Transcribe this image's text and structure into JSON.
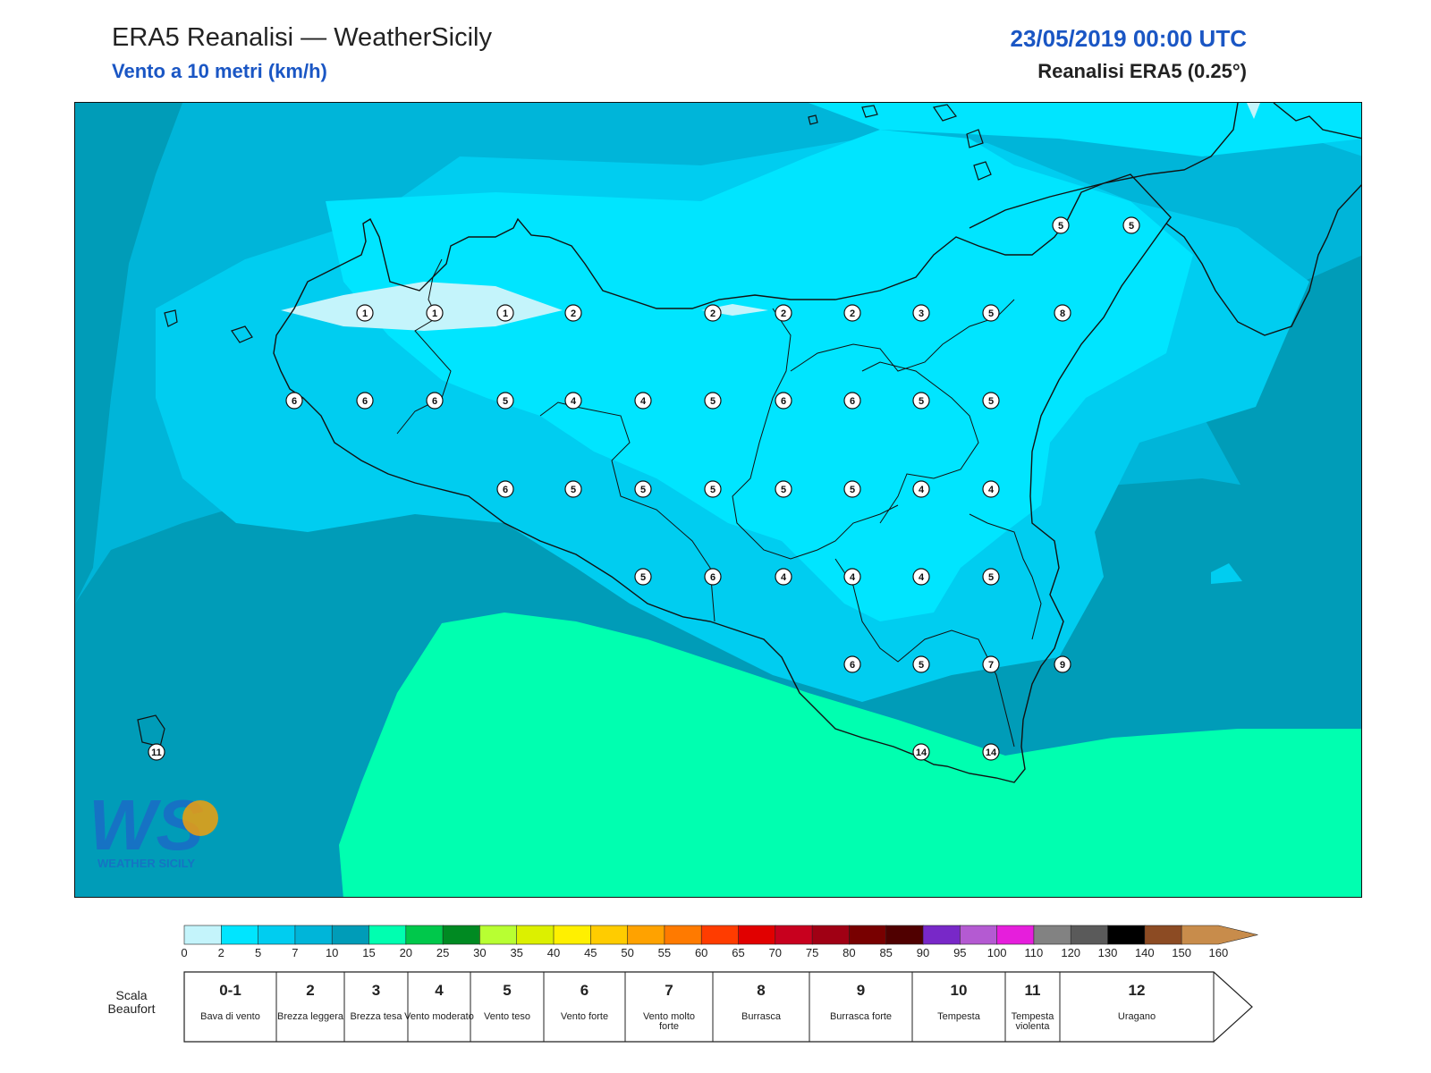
{
  "header": {
    "title": "ERA5 Reanalisi — WeatherSicily",
    "subtitle": "Vento a 10 metri (km/h)",
    "datetime": "23/05/2019 00:00 UTC",
    "model": "Reanalisi ERA5 (0.25°)"
  },
  "logo": {
    "text": "WEATHER SICILY",
    "initials": "WS"
  },
  "map": {
    "wind_labels": [
      {
        "value": "1"
      },
      {
        "value": "1"
      },
      {
        "value": "1"
      },
      {
        "value": "2"
      },
      {
        "value": "2"
      },
      {
        "value": "2"
      },
      {
        "value": "2"
      },
      {
        "value": "3"
      },
      {
        "value": "5"
      },
      {
        "value": "8"
      },
      {
        "value": "6"
      },
      {
        "value": "6"
      },
      {
        "value": "6"
      },
      {
        "value": "5"
      },
      {
        "value": "4"
      },
      {
        "value": "4"
      },
      {
        "value": "5"
      },
      {
        "value": "6"
      },
      {
        "value": "6"
      },
      {
        "value": "5"
      },
      {
        "value": "5"
      },
      {
        "value": "6"
      },
      {
        "value": "5"
      },
      {
        "value": "5"
      },
      {
        "value": "5"
      },
      {
        "value": "5"
      },
      {
        "value": "5"
      },
      {
        "value": "4"
      },
      {
        "value": "4"
      },
      {
        "value": "5"
      },
      {
        "value": "6"
      },
      {
        "value": "4"
      },
      {
        "value": "4"
      },
      {
        "value": "4"
      },
      {
        "value": "5"
      },
      {
        "value": "6"
      },
      {
        "value": "5"
      },
      {
        "value": "7"
      },
      {
        "value": "9"
      },
      {
        "value": "14"
      },
      {
        "value": "14"
      },
      {
        "value": "11"
      },
      {
        "value": "5"
      },
      {
        "value": "5"
      }
    ]
  },
  "legend": {
    "scale_ticks": [
      "0",
      "2",
      "5",
      "7",
      "10",
      "15",
      "20",
      "25",
      "30",
      "35",
      "40",
      "45",
      "50",
      "55",
      "60",
      "65",
      "70",
      "75",
      "80",
      "85",
      "90",
      "95",
      "100",
      "110",
      "120",
      "130",
      "140",
      "150",
      "160"
    ],
    "scale_colors": [
      "#c4f4fb",
      "#00e5ff",
      "#00cdf0",
      "#00b5d9",
      "#009cb8",
      "#00ffb0",
      "#00c84b",
      "#008a22",
      "#b8ff32",
      "#dcf000",
      "#fff000",
      "#ffcc00",
      "#ffa200",
      "#ff7a00",
      "#ff3c00",
      "#e10000",
      "#c8001e",
      "#a00014",
      "#780000",
      "#500000",
      "#7828c8",
      "#b45ad2",
      "#e61edc",
      "#828282",
      "#5a5a5a",
      "#000000",
      "#8c4b23",
      "#c88c4b"
    ],
    "beaufort_label": "Scala Beaufort",
    "beaufort": [
      {
        "num": "0-1",
        "desc": "Bava di vento"
      },
      {
        "num": "2",
        "desc": "Brezza leggera"
      },
      {
        "num": "3",
        "desc": "Brezza tesa"
      },
      {
        "num": "4",
        "desc": "Vento moderato"
      },
      {
        "num": "5",
        "desc": "Vento teso"
      },
      {
        "num": "6",
        "desc": "Vento forte"
      },
      {
        "num": "7",
        "desc": "Vento molto forte"
      },
      {
        "num": "8",
        "desc": "Burrasca"
      },
      {
        "num": "9",
        "desc": "Burrasca forte"
      },
      {
        "num": "10",
        "desc": "Tempesta"
      },
      {
        "num": "11",
        "desc": "Tempesta violenta"
      },
      {
        "num": "12",
        "desc": "Uragano"
      }
    ]
  }
}
